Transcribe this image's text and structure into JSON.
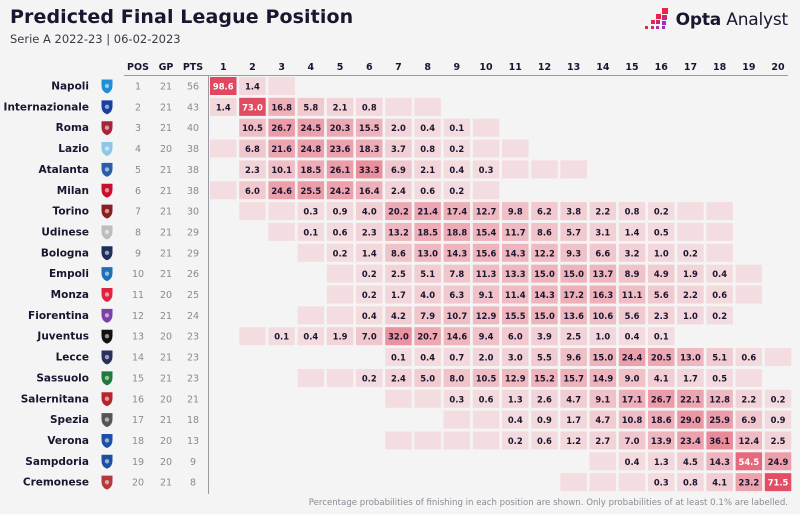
{
  "header": {
    "title": "Predicted Final League Position",
    "subtitle": "Serie A 2022-23 | 06-02-2023",
    "brand_bold": "Opta",
    "brand_light": " Analyst"
  },
  "colors": {
    "cell_low": "#f3dde0",
    "cell_high": "#e1485f",
    "text_dark": "#1b1530",
    "text_light": "#ffffff",
    "muted": "#8a8a94",
    "brand_red": "#e8244a",
    "brand_purple": "#9b2fc0"
  },
  "chart_data": {
    "type": "heatmap",
    "title": "Predicted Final League Position",
    "subtitle": "Serie A 2022-23 | 06-02-2023",
    "stat_columns": [
      "POS",
      "GP",
      "PTS"
    ],
    "position_columns": [
      "1",
      "2",
      "3",
      "4",
      "5",
      "6",
      "7",
      "8",
      "9",
      "10",
      "11",
      "12",
      "13",
      "14",
      "15",
      "16",
      "17",
      "18",
      "19",
      "20"
    ],
    "value_unit": "percent",
    "note": "null = no chance (blank cell); 0 = shaded cell with probability below 0.1% (unlabelled)",
    "rows": [
      {
        "team": "Napoli",
        "badge": "napoli-badge",
        "badge_color": "#1e8fd6",
        "pos": 1,
        "gp": 21,
        "pts": 56,
        "probs": [
          98.6,
          1.4,
          0,
          null,
          null,
          null,
          null,
          null,
          null,
          null,
          null,
          null,
          null,
          null,
          null,
          null,
          null,
          null,
          null,
          null
        ]
      },
      {
        "team": "Internazionale",
        "badge": "inter-badge",
        "badge_color": "#1a3f9e",
        "pos": 2,
        "gp": 21,
        "pts": 43,
        "probs": [
          1.4,
          73.0,
          16.8,
          5.8,
          2.1,
          0.8,
          0,
          0,
          null,
          null,
          null,
          null,
          null,
          null,
          null,
          null,
          null,
          null,
          null,
          null
        ]
      },
      {
        "team": "Roma",
        "badge": "roma-badge",
        "badge_color": "#a8243a",
        "pos": 3,
        "gp": 21,
        "pts": 40,
        "probs": [
          null,
          10.5,
          26.7,
          24.5,
          20.3,
          15.5,
          2.0,
          0.4,
          0.1,
          0,
          null,
          null,
          null,
          null,
          null,
          null,
          null,
          null,
          null,
          null
        ]
      },
      {
        "team": "Lazio",
        "badge": "lazio-badge",
        "badge_color": "#8fc6e8",
        "pos": 4,
        "gp": 20,
        "pts": 38,
        "probs": [
          0,
          6.8,
          21.6,
          24.8,
          23.6,
          18.3,
          3.7,
          0.8,
          0.2,
          0,
          0,
          null,
          null,
          null,
          null,
          null,
          null,
          null,
          null,
          null
        ]
      },
      {
        "team": "Atalanta",
        "badge": "atalanta-badge",
        "badge_color": "#2a5fa8",
        "pos": 5,
        "gp": 21,
        "pts": 38,
        "probs": [
          null,
          2.3,
          10.1,
          18.5,
          26.1,
          33.3,
          6.9,
          2.1,
          0.4,
          0.3,
          0,
          0,
          0,
          null,
          null,
          null,
          null,
          null,
          null,
          null
        ]
      },
      {
        "team": "Milan",
        "badge": "milan-badge",
        "badge_color": "#c8102e",
        "pos": 6,
        "gp": 21,
        "pts": 38,
        "probs": [
          0,
          6.0,
          24.6,
          25.5,
          24.2,
          16.4,
          2.4,
          0.6,
          0.2,
          0,
          null,
          null,
          null,
          null,
          null,
          null,
          null,
          null,
          null,
          null
        ]
      },
      {
        "team": "Torino",
        "badge": "torino-badge",
        "badge_color": "#8a1f1f",
        "pos": 7,
        "gp": 21,
        "pts": 30,
        "probs": [
          null,
          0,
          0,
          0.3,
          0.9,
          4.0,
          20.2,
          21.4,
          17.4,
          12.7,
          9.8,
          6.2,
          3.8,
          2.2,
          0.8,
          0.2,
          0,
          0,
          null,
          null
        ]
      },
      {
        "team": "Udinese",
        "badge": "udinese-badge",
        "badge_color": "#bdbdbd",
        "pos": 8,
        "gp": 21,
        "pts": 29,
        "probs": [
          null,
          null,
          0,
          0.1,
          0.6,
          2.3,
          13.2,
          18.5,
          18.8,
          15.4,
          11.7,
          8.6,
          5.7,
          3.1,
          1.4,
          0.5,
          0,
          0,
          null,
          null
        ]
      },
      {
        "team": "Bologna",
        "badge": "bologna-badge",
        "badge_color": "#1f2f5c",
        "pos": 9,
        "gp": 21,
        "pts": 29,
        "probs": [
          null,
          null,
          null,
          0,
          0.2,
          1.4,
          8.6,
          13.0,
          14.3,
          15.6,
          14.3,
          12.2,
          9.3,
          6.6,
          3.2,
          1.0,
          0.2,
          0,
          null,
          null
        ]
      },
      {
        "team": "Empoli",
        "badge": "empoli-badge",
        "badge_color": "#1d6fb8",
        "pos": 10,
        "gp": 21,
        "pts": 26,
        "probs": [
          null,
          null,
          null,
          null,
          0,
          0.2,
          2.5,
          5.1,
          7.8,
          11.3,
          13.3,
          15.0,
          15.0,
          13.7,
          8.9,
          4.9,
          1.9,
          0.4,
          0,
          null
        ]
      },
      {
        "team": "Monza",
        "badge": "monza-badge",
        "badge_color": "#e0233f",
        "pos": 11,
        "gp": 20,
        "pts": 25,
        "probs": [
          null,
          null,
          null,
          null,
          0,
          0.2,
          1.7,
          4.0,
          6.3,
          9.1,
          11.4,
          14.3,
          17.2,
          16.3,
          11.1,
          5.6,
          2.2,
          0.6,
          0,
          null
        ]
      },
      {
        "team": "Fiorentina",
        "badge": "fiorentina-badge",
        "badge_color": "#7b3fa8",
        "pos": 12,
        "gp": 21,
        "pts": 24,
        "probs": [
          null,
          null,
          null,
          0,
          0,
          0.4,
          4.2,
          7.9,
          10.7,
          12.9,
          15.5,
          15.0,
          13.6,
          10.6,
          5.6,
          2.3,
          1.0,
          0.2,
          null,
          null
        ]
      },
      {
        "team": "Juventus",
        "badge": "juventus-badge",
        "badge_color": "#111111",
        "pos": 13,
        "gp": 20,
        "pts": 23,
        "probs": [
          null,
          0,
          0.1,
          0.4,
          1.9,
          7.0,
          32.0,
          20.7,
          14.6,
          9.4,
          6.0,
          3.9,
          2.5,
          1.0,
          0.4,
          0.1,
          null,
          null,
          null,
          null
        ]
      },
      {
        "team": "Lecce",
        "badge": "lecce-badge",
        "badge_color": "#2a2f5c",
        "pos": 14,
        "gp": 21,
        "pts": 23,
        "probs": [
          null,
          null,
          null,
          null,
          null,
          null,
          0.1,
          0.4,
          0.7,
          2.0,
          3.0,
          5.5,
          9.6,
          15.0,
          24.4,
          20.5,
          13.0,
          5.1,
          0.6,
          0
        ]
      },
      {
        "team": "Sassuolo",
        "badge": "sassuolo-badge",
        "badge_color": "#1f7a3a",
        "pos": 15,
        "gp": 21,
        "pts": 23,
        "probs": [
          null,
          null,
          null,
          0,
          0,
          0.2,
          2.4,
          5.0,
          8.0,
          10.5,
          12.9,
          15.2,
          15.7,
          14.9,
          9.0,
          4.1,
          1.7,
          0.5,
          0,
          null
        ]
      },
      {
        "team": "Salernitana",
        "badge": "salernitana-badge",
        "badge_color": "#b5262e",
        "pos": 16,
        "gp": 20,
        "pts": 21,
        "probs": [
          null,
          null,
          null,
          null,
          null,
          null,
          0,
          0,
          0.3,
          0.6,
          1.3,
          2.6,
          4.7,
          9.1,
          17.1,
          26.7,
          22.1,
          12.8,
          2.2,
          0.2
        ]
      },
      {
        "team": "Spezia",
        "badge": "spezia-badge",
        "badge_color": "#555555",
        "pos": 17,
        "gp": 21,
        "pts": 18,
        "probs": [
          null,
          null,
          null,
          null,
          null,
          null,
          null,
          null,
          0,
          0,
          0.4,
          0.9,
          1.7,
          4.7,
          10.8,
          18.6,
          29.0,
          25.9,
          6.9,
          0.9
        ]
      },
      {
        "team": "Verona",
        "badge": "verona-badge",
        "badge_color": "#1c4fa8",
        "pos": 18,
        "gp": 20,
        "pts": 13,
        "probs": [
          null,
          null,
          null,
          null,
          null,
          null,
          0,
          0,
          0,
          0,
          0.2,
          0.6,
          1.2,
          2.7,
          7.0,
          13.9,
          23.4,
          36.1,
          12.4,
          2.5
        ]
      },
      {
        "team": "Sampdoria",
        "badge": "sampdoria-badge",
        "badge_color": "#1d4fa0",
        "pos": 19,
        "gp": 20,
        "pts": 9,
        "probs": [
          null,
          null,
          null,
          null,
          null,
          null,
          null,
          null,
          null,
          null,
          null,
          null,
          null,
          0,
          0.4,
          1.3,
          4.5,
          14.3,
          54.5,
          24.9
        ]
      },
      {
        "team": "Cremonese",
        "badge": "cremonese-badge",
        "badge_color": "#b23a3a",
        "pos": 20,
        "gp": 21,
        "pts": 8,
        "probs": [
          null,
          null,
          null,
          null,
          null,
          null,
          null,
          null,
          null,
          null,
          null,
          null,
          0,
          0,
          0,
          0.3,
          0.8,
          4.1,
          23.2,
          71.5
        ]
      }
    ]
  },
  "footnote": "Percentage probabilities of finishing in each position are shown. Only probabilities of at least 0.1% are labelled."
}
